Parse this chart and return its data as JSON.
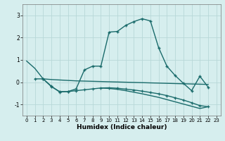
{
  "xlabel": "Humidex (Indice chaleur)",
  "bg_color": "#d6eeee",
  "grid_color": "#b8d8d8",
  "line_color": "#1a6b6b",
  "xlim": [
    -0.5,
    23.5
  ],
  "ylim": [
    -1.5,
    3.5
  ],
  "yticks": [
    -1,
    0,
    1,
    2,
    3
  ],
  "xticks": [
    0,
    1,
    2,
    3,
    4,
    5,
    6,
    7,
    8,
    9,
    10,
    11,
    12,
    13,
    14,
    15,
    16,
    17,
    18,
    19,
    20,
    21,
    22,
    23
  ],
  "series1_x": [
    0,
    1,
    2,
    3,
    4,
    5,
    6,
    7,
    8,
    9,
    10,
    11,
    12,
    13,
    14,
    15,
    16,
    17,
    18,
    19,
    20,
    21,
    22
  ],
  "series1_y": [
    0.95,
    0.62,
    0.15,
    0.12,
    0.1,
    0.08,
    0.06,
    0.05,
    0.04,
    0.03,
    0.02,
    0.01,
    0.0,
    -0.01,
    -0.02,
    -0.03,
    -0.04,
    -0.05,
    -0.06,
    -0.07,
    -0.08,
    -0.09,
    -0.1
  ],
  "series2_x": [
    2,
    3,
    4,
    5,
    6,
    7,
    8,
    9,
    10,
    11,
    12,
    13,
    14,
    15,
    16,
    17,
    18,
    19,
    20,
    21,
    22
  ],
  "series2_y": [
    0.15,
    -0.2,
    -0.42,
    -0.42,
    -0.3,
    0.55,
    0.72,
    0.72,
    2.25,
    2.28,
    2.55,
    2.72,
    2.85,
    2.75,
    1.55,
    0.72,
    0.3,
    -0.05,
    -0.38,
    0.27,
    -0.22
  ],
  "series3_x": [
    1,
    2,
    3,
    4,
    5,
    6,
    7,
    8,
    9,
    10,
    11,
    12,
    13,
    14,
    15,
    16,
    17,
    18,
    19,
    20,
    21,
    22
  ],
  "series3_y": [
    0.15,
    0.15,
    -0.18,
    -0.44,
    -0.42,
    -0.38,
    -0.34,
    -0.3,
    -0.26,
    -0.25,
    -0.27,
    -0.31,
    -0.35,
    -0.4,
    -0.46,
    -0.52,
    -0.6,
    -0.7,
    -0.8,
    -0.92,
    -1.05,
    -1.1
  ],
  "series4_x": [
    9,
    10,
    11,
    12,
    13,
    14,
    15,
    16,
    17,
    18,
    19,
    20,
    21,
    22
  ],
  "series4_y": [
    -0.26,
    -0.28,
    -0.32,
    -0.38,
    -0.45,
    -0.52,
    -0.6,
    -0.68,
    -0.78,
    -0.88,
    -0.98,
    -1.08,
    -1.18,
    -1.1
  ]
}
